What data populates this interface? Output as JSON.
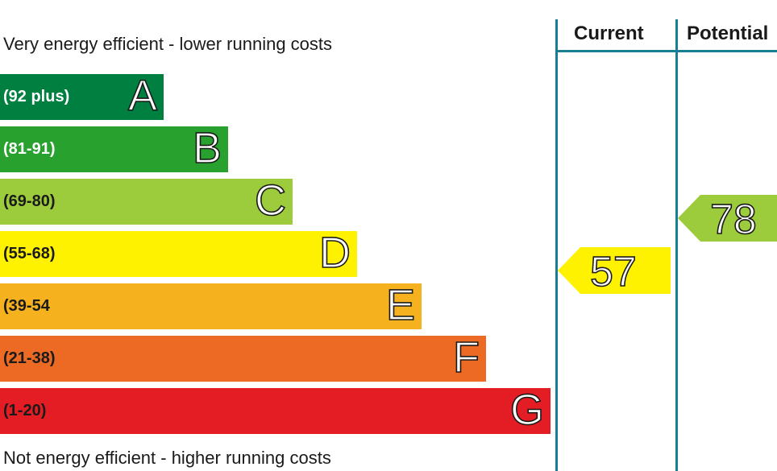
{
  "chart_data": {
    "type": "bar",
    "top_label": "Very energy efficient - lower running costs",
    "bottom_label": "Not energy efficient - higher running costs",
    "bands": [
      {
        "letter": "A",
        "range": "(92 plus)",
        "color": "#008040",
        "text_color": "#ffffff"
      },
      {
        "letter": "B",
        "range": "(81-91)",
        "color": "#29a12f",
        "text_color": "#ffffff"
      },
      {
        "letter": "C",
        "range": "(69-80)",
        "color": "#9ccb3b",
        "text_color": "#1a1a1a"
      },
      {
        "letter": "D",
        "range": "(55-68)",
        "color": "#fff200",
        "text_color": "#1a1a1a"
      },
      {
        "letter": "E",
        "range": "(39-54",
        "color": "#f5b11e",
        "text_color": "#1a1a1a"
      },
      {
        "letter": "F",
        "range": "(21-38)",
        "color": "#ec6a23",
        "text_color": "#1a1a1a"
      },
      {
        "letter": "G",
        "range": "(1-20)",
        "color": "#e31d23",
        "text_color": "#1a1a1a"
      }
    ],
    "columns": [
      "Current",
      "Potential"
    ],
    "ratings": [
      {
        "column": "Current",
        "value": 57,
        "band": "D",
        "color": "#fff200"
      },
      {
        "column": "Potential",
        "value": 78,
        "band": "C",
        "color": "#9ccb3b"
      }
    ]
  }
}
